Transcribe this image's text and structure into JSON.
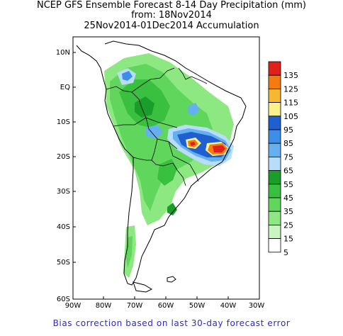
{
  "title": {
    "line1": "NCEP GFS Ensemble Forecast 8-14 Day Precipitation (mm)",
    "line2": "from: 18Nov2014",
    "line3": "25Nov2014-01Dec2014 Accumulation"
  },
  "axes": {
    "lat_labels": [
      "10N",
      "EQ",
      "10S",
      "20S",
      "30S",
      "40S",
      "50S",
      "60S"
    ],
    "lon_labels": [
      "90W",
      "80W",
      "70W",
      "60W",
      "50W",
      "40W",
      "30W"
    ]
  },
  "legend": {
    "values": [
      "135",
      "125",
      "115",
      "105",
      "95",
      "85",
      "75",
      "65",
      "55",
      "45",
      "35",
      "25",
      "15",
      "5"
    ],
    "colors": [
      "#e0201a",
      "#f47a12",
      "#f5b833",
      "#fbf18a",
      "#1f5fcf",
      "#3c8ee8",
      "#64b0f0",
      "#b9dcf8",
      "#1a9e2a",
      "#38c03e",
      "#60d65c",
      "#8ee882",
      "#c8f5c0",
      "#ffffff"
    ]
  },
  "footer": "Bias correction based on last 30-day forecast error"
}
